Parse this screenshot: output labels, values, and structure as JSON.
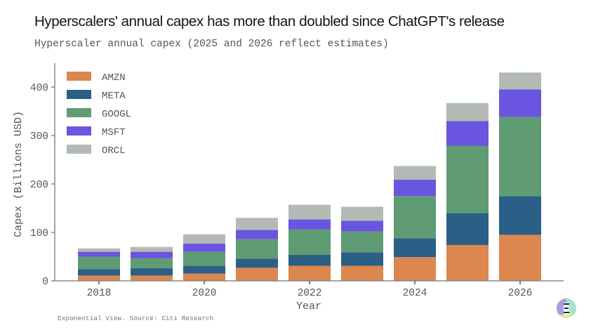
{
  "header": {
    "title": "Hyperscalers' annual capex has more than doubled since ChatGPT's release",
    "subtitle": "Hyperscaler annual capex (2025 and 2026 reflect estimates)"
  },
  "footer": {
    "source": "Exponential View. Source: Citi Research"
  },
  "logo": {
    "icon": "exponential-view-logo-icon"
  },
  "chart_data": {
    "type": "bar",
    "stacked": true,
    "title": "Hyperscaler annual capex (2025 and 2026 reflect estimates)",
    "xlabel": "Year",
    "ylabel": "Capex (Billions USD)",
    "ylim": [
      0,
      440
    ],
    "yticks": [
      0,
      100,
      200,
      300,
      400
    ],
    "xticks": [
      "2018",
      "2020",
      "2022",
      "2024",
      "2026"
    ],
    "grid": false,
    "legend_position": "top-left",
    "categories": [
      "2018",
      "2019",
      "2020",
      "2021",
      "2022",
      "2023",
      "2024",
      "2025",
      "2026"
    ],
    "series": [
      {
        "name": "AMZN",
        "color": "#dc8650",
        "values": [
          11,
          11,
          15,
          27,
          31,
          31,
          49,
          74,
          95
        ]
      },
      {
        "name": "META",
        "color": "#2a5f86",
        "values": [
          13,
          15,
          16,
          19,
          23,
          28,
          39,
          66,
          80
        ]
      },
      {
        "name": "GOOGL",
        "color": "#5f9b73",
        "values": [
          26,
          21,
          29,
          40,
          52,
          43,
          87,
          139,
          163
        ]
      },
      {
        "name": "MSFT",
        "color": "#6a55e0",
        "values": [
          10,
          13,
          17,
          19,
          21,
          22,
          34,
          51,
          57
        ]
      },
      {
        "name": "ORCL",
        "color": "#b3bab3",
        "values": [
          7,
          10,
          19,
          25,
          30,
          29,
          28,
          37,
          35
        ]
      }
    ]
  }
}
